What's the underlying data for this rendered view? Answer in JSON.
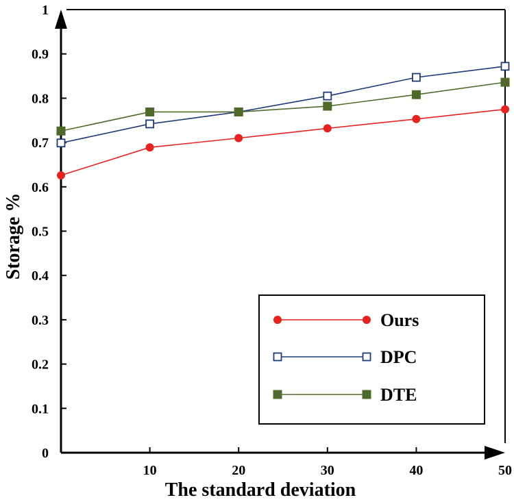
{
  "chart_data": {
    "type": "line",
    "title": "",
    "xlabel": "The standard deviation",
    "ylabel": "Storage %",
    "x": [
      0,
      10,
      20,
      30,
      40,
      50
    ],
    "xlim": [
      0,
      50
    ],
    "ylim": [
      0,
      1
    ],
    "xticks": [
      10,
      20,
      30,
      40,
      50
    ],
    "xtick_labels": [
      "10",
      "20",
      "30",
      "40",
      "50"
    ],
    "yticks": [
      0,
      0.1,
      0.2,
      0.3,
      0.4,
      0.5,
      0.6,
      0.7,
      0.8,
      0.9,
      1
    ],
    "ytick_labels": [
      "0",
      "0.1",
      "0.2",
      "0.3",
      "0.4",
      "0.5",
      "0.6",
      "0.7",
      "0.8",
      "0.9",
      "1"
    ],
    "grid": false,
    "legend_position": "bottom-right",
    "series": [
      {
        "name": "Ours",
        "values": [
          0.626,
          0.689,
          0.71,
          0.732,
          0.753,
          0.775
        ],
        "color": "#e8221e",
        "marker": "circle"
      },
      {
        "name": "DPC",
        "values": [
          0.699,
          0.742,
          0.769,
          0.805,
          0.847,
          0.872
        ],
        "color": "#1f3a78",
        "marker": "open-square"
      },
      {
        "name": "DTE",
        "values": [
          0.726,
          0.769,
          0.769,
          0.782,
          0.808,
          0.836
        ],
        "color": "#4e6a2a",
        "marker": "filled-square"
      }
    ]
  }
}
